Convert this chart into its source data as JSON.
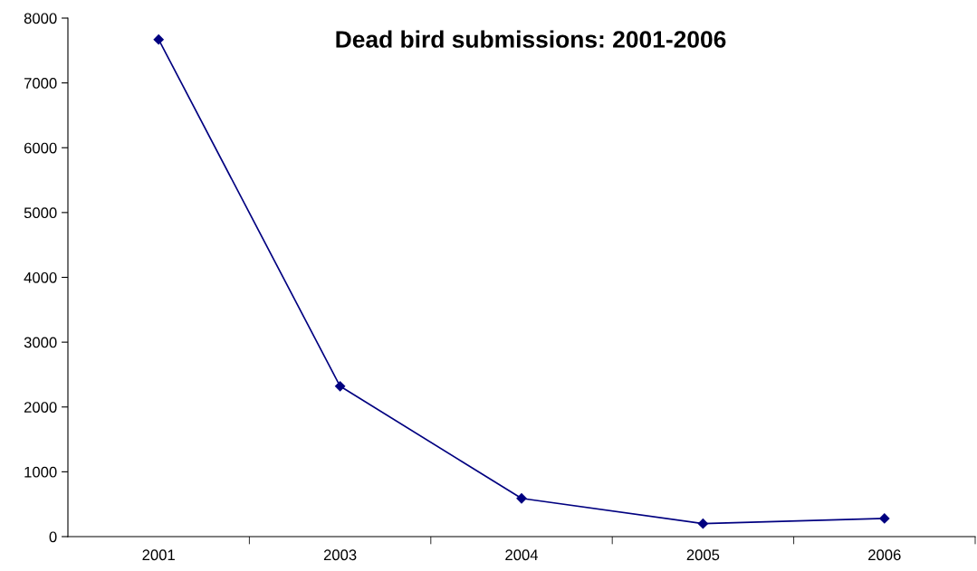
{
  "chart_data": {
    "type": "line",
    "title": "Dead bird submissions: 2001-2006",
    "categories": [
      "2001",
      "2003",
      "2004",
      "2005",
      "2006"
    ],
    "series": [
      {
        "color": "#000080",
        "values": [
          7670,
          2320,
          590,
          200,
          280
        ]
      }
    ],
    "ylim": [
      0,
      8000
    ],
    "yticks": [
      0,
      1000,
      2000,
      3000,
      4000,
      5000,
      6000,
      7000,
      8000
    ],
    "marker": "diamond",
    "line_style": "solid",
    "grid": false,
    "legend": false
  }
}
